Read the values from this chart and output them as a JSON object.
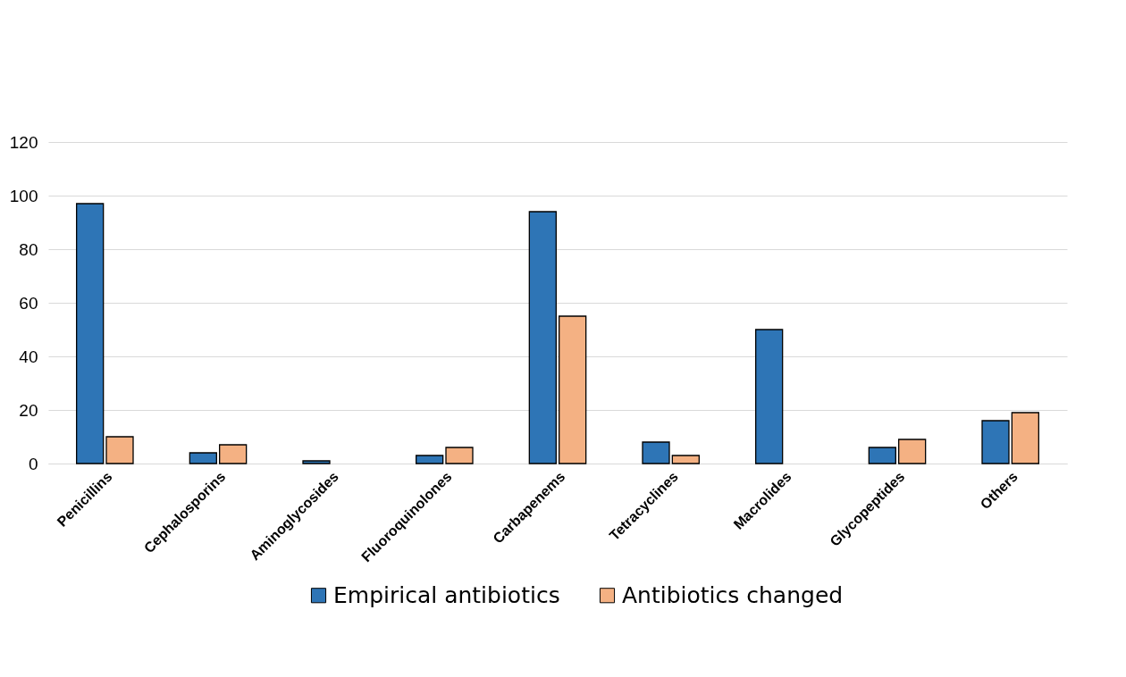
{
  "chart_data": {
    "type": "bar",
    "categories": [
      "Penicillins",
      "Cephalosporins",
      "Aminoglycosides",
      "Fluoroquinolones",
      "Carbapenems",
      "Tetracyclines",
      "Macrolides",
      "Glycopeptides",
      "Others"
    ],
    "series": [
      {
        "name": "Empirical antibiotics",
        "color": "#2e75b6",
        "values": [
          97,
          4,
          1,
          3,
          94,
          8,
          50,
          6,
          16
        ]
      },
      {
        "name": "Antibiotics changed",
        "color": "#f4b183",
        "values": [
          10,
          7,
          null,
          6,
          55,
          3,
          null,
          9,
          19
        ]
      }
    ],
    "ylim": [
      0,
      120
    ],
    "yticks": [
      0,
      20,
      40,
      60,
      80,
      100,
      120
    ],
    "grid": "y",
    "legend": "bottom"
  }
}
